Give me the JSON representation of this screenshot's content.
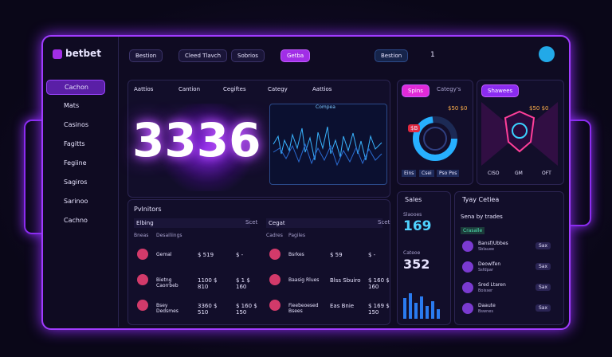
{
  "brand": "betbet",
  "topbar": {
    "items": [
      "Bestion",
      "Cleed Tlavch",
      "Sobrios",
      "Getba"
    ],
    "right": [
      "Bestion",
      "1"
    ]
  },
  "sidebar": [
    "Cachon",
    "Mats",
    "Casinos",
    "Fagitts",
    "Fegiine",
    "Sagiros",
    "Sarinoo",
    "Cachno"
  ],
  "tabs": [
    "Aattios",
    "Cantion",
    "Cegiftes",
    "Categy",
    "Aattios"
  ],
  "hero": {
    "number": "3336",
    "chart_title": "Compea"
  },
  "promo": {
    "button": "Spins",
    "dropdown": "Categy's",
    "amount": "$50 $0",
    "badge": "$B",
    "tabs": [
      "Eins",
      "Csei",
      "Pso Pos"
    ]
  },
  "featured": {
    "button": "Shawees",
    "amount": "$50 $0",
    "tabs": [
      "CISO",
      "GM",
      "OFT"
    ]
  },
  "providers": {
    "title": "Pvlnitors",
    "left": {
      "filter": "Elbing",
      "action": "Scet",
      "headers": [
        "Bneas",
        "Desailiings"
      ],
      "rows": [
        {
          "name": "Gemal",
          "value": "$ 519",
          "extra": "$ -"
        },
        {
          "name": "Bietng Caorrbeb",
          "value": "1100 $ 810",
          "extra": "$ 1 $ 160"
        },
        {
          "name": "Bsey Dedsmes",
          "value": "3360 $ 510",
          "extra": "$ 160 $ 150"
        }
      ]
    },
    "right": {
      "filter": "Cegat",
      "action": "Scet",
      "headers": [
        "Cadres",
        "Pagiles"
      ],
      "rows": [
        {
          "name": "Bsrkes",
          "value": "$ 59",
          "extra": "$ -"
        },
        {
          "name": "Baasig Rlues",
          "value": "Blss Sbuiro",
          "extra": "$ 160 $ 160"
        },
        {
          "name": "Fieebeoesed Bsees",
          "value": "Eas Bnie",
          "extra": "$ 169 $ 150"
        }
      ]
    }
  },
  "sales": {
    "title": "Sales",
    "label_1": "Slaooes",
    "number_1": "169",
    "label_2": "Cateoe",
    "number_2": "352"
  },
  "list": {
    "title": "Tyay Cetiea",
    "subtitle": "Sena by trades",
    "chip": "Crasalle",
    "items": [
      {
        "name": "Bansf/Ubbes",
        "sub": "Sblauee",
        "button": "Sax"
      },
      {
        "name": "Deowlfen",
        "sub": "Ssfdpar",
        "button": "Sax"
      },
      {
        "name": "Sred Ltaren",
        "sub": "Boisser",
        "button": "Sax"
      },
      {
        "name": "Daaute",
        "sub": "Bswnes",
        "button": "Sax"
      }
    ]
  }
}
